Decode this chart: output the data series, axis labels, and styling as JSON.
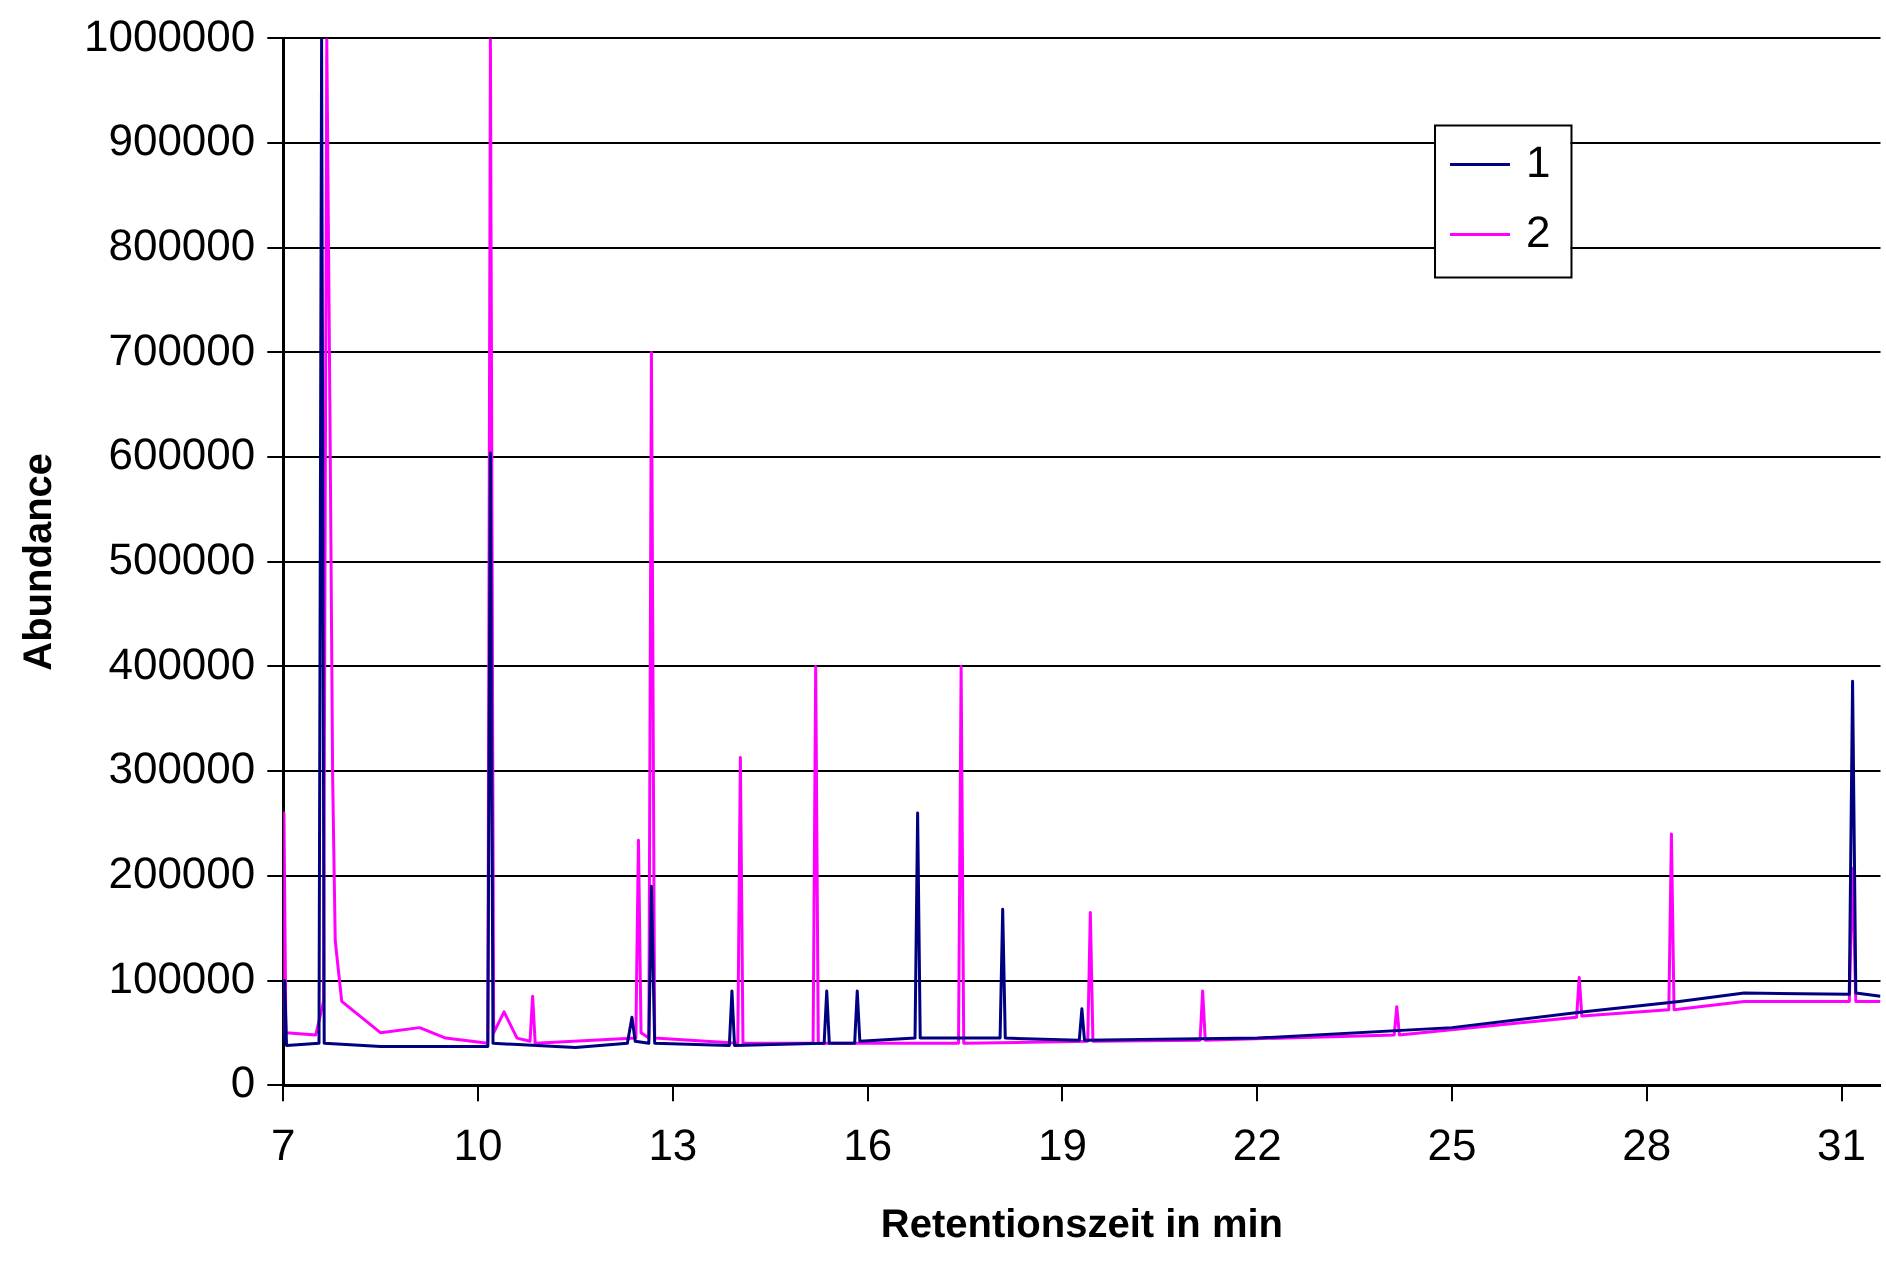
{
  "chart_data": {
    "type": "line",
    "xlabel": "Retentionszeit in min",
    "ylabel": "Abundance",
    "xlim": [
      7,
      31.6
    ],
    "xticks": [
      7,
      10,
      13,
      16,
      19,
      22,
      25,
      28,
      31
    ],
    "ylim": [
      0,
      1000000
    ],
    "yticks": [
      0,
      100000,
      200000,
      300000,
      400000,
      500000,
      600000,
      700000,
      800000,
      900000,
      1000000
    ],
    "grid": "y",
    "legend": "top right",
    "marker": "none",
    "line_style": "solid",
    "series": [
      {
        "name": "1",
        "color": "#000080",
        "x": [
          7,
          7.02,
          7.05,
          7.55,
          7.59,
          7.63,
          8.5,
          10.15,
          10.19,
          10.23,
          11.5,
          12.3,
          12.37,
          12.42,
          12.63,
          12.67,
          12.72,
          13.87,
          13.91,
          13.95,
          15.33,
          15.37,
          15.41,
          15.8,
          15.84,
          15.88,
          16.73,
          16.77,
          16.81,
          18.04,
          18.08,
          18.12,
          19.26,
          19.3,
          19.34,
          22,
          25,
          27,
          28.5,
          29.5,
          31.12,
          31.17,
          31.22,
          31.6
        ],
        "values": [
          40000,
          100000,
          38000,
          40000,
          1000000,
          40000,
          37000,
          37000,
          604000,
          40000,
          36000,
          40000,
          65000,
          42000,
          40000,
          190000,
          40000,
          38000,
          90000,
          38000,
          40000,
          90000,
          40000,
          40000,
          90000,
          42000,
          45000,
          260000,
          45000,
          45000,
          168000,
          45000,
          43000,
          73000,
          43000,
          45000,
          55000,
          70000,
          80000,
          88000,
          87000,
          386000,
          88000,
          85000
        ]
      },
      {
        "name": "2",
        "color": "#ff00ff",
        "x": [
          7,
          7.01,
          7.04,
          7.5,
          7.62,
          7.67,
          7.72,
          7.76,
          7.8,
          7.9,
          8.2,
          8.5,
          9.1,
          9.5,
          10.15,
          10.19,
          10.24,
          10.4,
          10.6,
          10.8,
          10.84,
          10.88,
          12.43,
          12.47,
          12.51,
          12.63,
          12.67,
          12.72,
          14.0,
          14.04,
          14.08,
          15.16,
          15.2,
          15.24,
          17.4,
          17.44,
          17.48,
          19.39,
          19.43,
          19.47,
          21.12,
          21.16,
          21.2,
          24.11,
          24.15,
          24.19,
          26.92,
          26.96,
          27.0,
          28.34,
          28.38,
          28.42,
          29.5,
          31.12,
          31.17,
          31.22,
          31.6
        ],
        "values": [
          48000,
          260000,
          50000,
          48000,
          80000,
          1000000,
          630000,
          295000,
          138000,
          80000,
          65000,
          50000,
          55000,
          45000,
          40000,
          1000000,
          50000,
          70000,
          45000,
          42000,
          85000,
          40000,
          45000,
          234000,
          50000,
          45000,
          700000,
          45000,
          40000,
          313000,
          40000,
          40000,
          400000,
          40000,
          40000,
          400000,
          40000,
          42000,
          165000,
          42000,
          43000,
          90000,
          43000,
          48000,
          75000,
          48000,
          65000,
          103000,
          66000,
          72000,
          240000,
          72000,
          80000,
          80000,
          207000,
          80000,
          80000
        ]
      }
    ]
  }
}
